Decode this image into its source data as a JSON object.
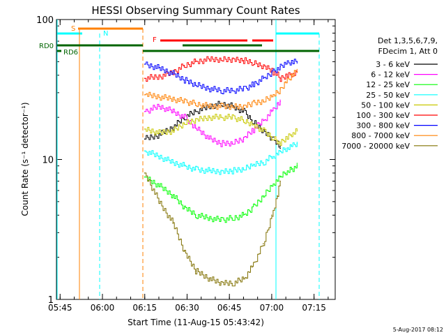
{
  "chart_data": {
    "type": "line",
    "title": "HESSI Observing Summary Count Rates",
    "xlabel": "Start Time (11-Aug-15 05:43:42)",
    "ylabel": "Count Rate (s⁻¹ detector⁻¹)",
    "yscale": "log",
    "ylim": [
      1,
      100
    ],
    "xlim": [
      "05:43",
      "07:22"
    ],
    "x_ticks": [
      "05:45",
      "06:00",
      "06:15",
      "06:30",
      "06:45",
      "07:00",
      "07:15"
    ],
    "y_ticks": [
      "1",
      "10",
      "100"
    ],
    "grid": false,
    "legend_title": [
      "Det 1,3,5,6,7,9,",
      "FDecim 1, Att 0"
    ],
    "legend_position": "right",
    "footer": "5-Aug-2017 08:12",
    "flag_labels": {
      "S": "S",
      "N": "N",
      "F": "F",
      "RD0": "RD0",
      "RD6": "RD6"
    },
    "series": [
      {
        "name": "3 - 6 keV",
        "color": "#000000",
        "x": [
          "06:15",
          "06:20",
          "06:25",
          "06:29",
          "06:33",
          "06:38",
          "06:42",
          "06:46",
          "06:50",
          "06:53",
          "06:57",
          "07:00",
          "07:02",
          "07:03"
        ],
        "values": [
          14,
          15,
          17,
          20,
          22,
          24,
          25,
          24,
          22,
          19,
          16,
          14,
          13,
          12
        ]
      },
      {
        "name": "6 - 12 keV",
        "color": "#ff00ff",
        "x": [
          "06:15",
          "06:20",
          "06:25",
          "06:29",
          "06:33",
          "06:38",
          "06:42",
          "06:46",
          "06:50",
          "06:53",
          "06:57",
          "07:00",
          "07:02",
          "07:03"
        ],
        "values": [
          22,
          24,
          22,
          20,
          17,
          14,
          13,
          13,
          14,
          16,
          19,
          22,
          25,
          26
        ]
      },
      {
        "name": "12 - 25 keV",
        "color": "#00ff00",
        "x": [
          "06:15",
          "06:20",
          "06:25",
          "06:29",
          "06:33",
          "06:38",
          "06:42",
          "06:46",
          "06:50",
          "06:53",
          "06:57",
          "07:00",
          "07:02",
          "07:03",
          "07:05",
          "07:07",
          "07:09"
        ],
        "values": [
          7.5,
          6.5,
          5.5,
          4.5,
          4,
          3.8,
          3.7,
          3.8,
          4,
          4.5,
          5.5,
          6.5,
          7,
          7.5,
          8,
          8.5,
          9
        ]
      },
      {
        "name": "25 - 50 keV",
        "color": "#00ffff",
        "x": [
          "06:15",
          "06:20",
          "06:25",
          "06:29",
          "06:33",
          "06:38",
          "06:42",
          "06:46",
          "06:50",
          "06:53",
          "06:57",
          "07:00",
          "07:02",
          "07:03",
          "07:05",
          "07:07",
          "07:09"
        ],
        "values": [
          11.5,
          10.5,
          9.5,
          9,
          8.5,
          8.3,
          8.2,
          8.3,
          8.5,
          9,
          9.5,
          10.5,
          11,
          11.5,
          12,
          12.5,
          13
        ]
      },
      {
        "name": "50 - 100 keV",
        "color": "#c8c800",
        "x": [
          "06:15",
          "06:20",
          "06:25",
          "06:29",
          "06:33",
          "06:38",
          "06:42",
          "06:46",
          "06:50",
          "06:53",
          "06:57",
          "07:00",
          "07:02",
          "07:03",
          "07:05",
          "07:07",
          "07:09"
        ],
        "values": [
          16.5,
          15.5,
          16,
          18,
          19,
          20,
          20,
          20,
          19,
          18,
          16,
          14.5,
          13.5,
          13,
          14,
          15,
          16
        ]
      },
      {
        "name": "100 - 300 keV",
        "color": "#ff0000",
        "x": [
          "06:15",
          "06:20",
          "06:25",
          "06:29",
          "06:33",
          "06:38",
          "06:42",
          "06:46",
          "06:50",
          "06:53",
          "06:57",
          "07:00",
          "07:02",
          "07:03",
          "07:05",
          "07:07",
          "07:09"
        ],
        "values": [
          38,
          39,
          42,
          47,
          50,
          52,
          52,
          52,
          51,
          49,
          46,
          43,
          40,
          38,
          40,
          41,
          42
        ]
      },
      {
        "name": "300 - 800 keV",
        "color": "#0000ff",
        "x": [
          "06:15",
          "06:20",
          "06:25",
          "06:29",
          "06:33",
          "06:38",
          "06:42",
          "06:46",
          "06:50",
          "06:53",
          "06:57",
          "07:00",
          "07:02",
          "07:03",
          "07:05",
          "07:07",
          "07:09"
        ],
        "values": [
          48,
          45,
          41,
          37,
          34,
          32,
          31,
          31,
          32,
          34,
          38,
          42,
          44,
          46,
          48,
          49,
          50
        ]
      },
      {
        "name": "800 - 7000 keV",
        "color": "#ff8000",
        "x": [
          "06:15",
          "06:20",
          "06:25",
          "06:29",
          "06:33",
          "06:38",
          "06:42",
          "06:46",
          "06:50",
          "06:53",
          "06:57",
          "07:00",
          "07:02",
          "07:03",
          "07:05",
          "07:07",
          "07:09"
        ],
        "values": [
          29,
          28,
          27,
          26,
          25,
          24,
          24,
          24,
          24,
          25,
          26,
          28,
          30,
          32,
          36,
          40,
          44
        ]
      },
      {
        "name": "7000 - 20000 keV",
        "color": "#807000",
        "x": [
          "06:15",
          "06:20",
          "06:25",
          "06:29",
          "06:33",
          "06:38",
          "06:42",
          "06:46",
          "06:50",
          "06:53",
          "06:57",
          "07:00",
          "07:02",
          "07:03"
        ],
        "values": [
          8,
          5,
          3.5,
          2.2,
          1.6,
          1.4,
          1.3,
          1.3,
          1.4,
          1.7,
          2.5,
          4,
          5.5,
          7
        ]
      }
    ]
  }
}
